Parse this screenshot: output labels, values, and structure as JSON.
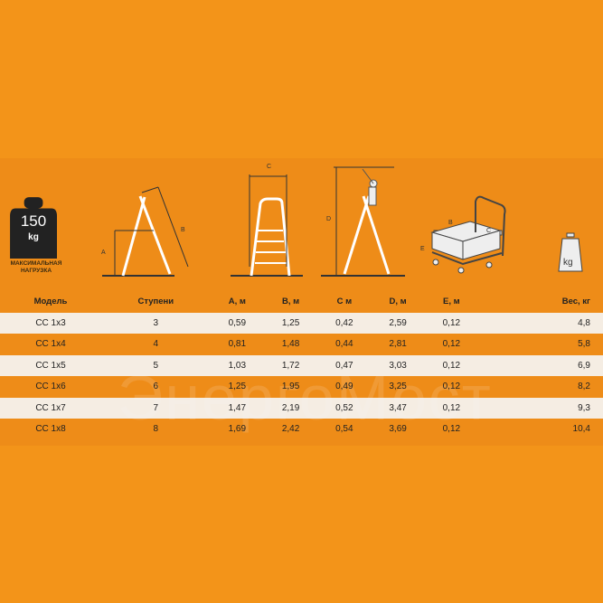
{
  "load": {
    "value": "150",
    "unit": "kg",
    "label_line1": "МАКСИМАЛЬНАЯ",
    "label_line2": "НАГРУЗКА"
  },
  "diagram_labels": {
    "a": "A",
    "b": "B",
    "c": "C",
    "d": "D",
    "cart_b": "B",
    "cart_c": "C",
    "cart_e": "E",
    "weight_icon": "kg"
  },
  "watermark": "ЭнергоМост",
  "table": {
    "headers": [
      "Модель",
      "Ступени",
      "A, м",
      "B, м",
      "C м",
      "D, м",
      "E, м",
      "Вес, кг"
    ],
    "rows": [
      [
        "CC 1x3",
        "3",
        "0,59",
        "1,25",
        "0,42",
        "2,59",
        "0,12",
        "4,8"
      ],
      [
        "CC 1x4",
        "4",
        "0,81",
        "1,48",
        "0,44",
        "2,81",
        "0,12",
        "5,8"
      ],
      [
        "CC 1x5",
        "5",
        "1,03",
        "1,72",
        "0,47",
        "3,03",
        "0,12",
        "6,9"
      ],
      [
        "CC 1x6",
        "6",
        "1,25",
        "1,95",
        "0,49",
        "3,25",
        "0,12",
        "8,2"
      ],
      [
        "CC 1x7",
        "7",
        "1,47",
        "2,19",
        "0,52",
        "3,47",
        "0,12",
        "9,3"
      ],
      [
        "CC 1x8",
        "8",
        "1,69",
        "2,42",
        "0,54",
        "3,69",
        "0,12",
        "10,4"
      ]
    ]
  },
  "colors": {
    "background": "#f39419",
    "row_light": "#f5f5f5"
  }
}
